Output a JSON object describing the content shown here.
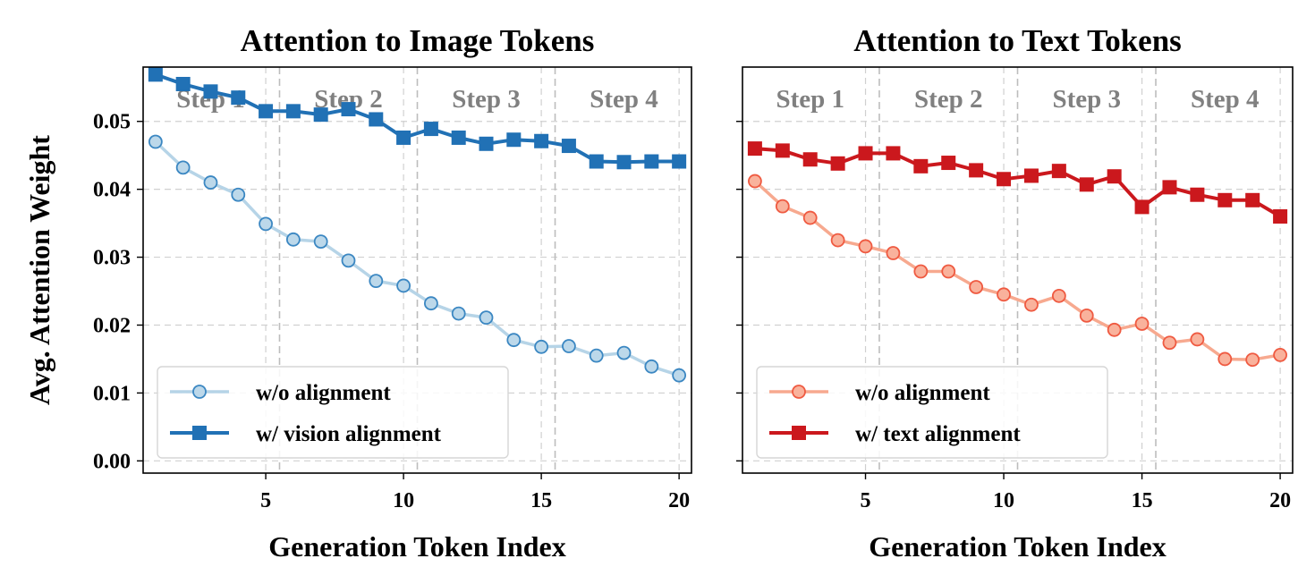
{
  "shared": {
    "ylabel": "Avg. Attention Weight",
    "xlabel": "Generation Token Index",
    "xlim": [
      0.55,
      20.45
    ],
    "ylim": [
      -0.0018,
      0.058
    ],
    "xticks": [
      5,
      10,
      15,
      20
    ],
    "yticks": [
      0.0,
      0.01,
      0.02,
      0.03,
      0.04,
      0.05
    ],
    "step_labels": [
      "Step 1",
      "Step 2",
      "Step 3",
      "Step 4"
    ],
    "step_centers": [
      3.0,
      8.0,
      13.0,
      18.0
    ],
    "step_boundaries": [
      5.5,
      10.5,
      15.5
    ],
    "grid": true,
    "legend_position": "lower-left"
  },
  "chart_data": [
    {
      "type": "line",
      "title": "Attention to Image Tokens",
      "x": [
        1,
        2,
        3,
        4,
        5,
        6,
        7,
        8,
        9,
        10,
        11,
        12,
        13,
        14,
        15,
        16,
        17,
        18,
        19,
        20
      ],
      "series": [
        {
          "name": "w/o alignment",
          "marker": "circle",
          "color": "#3b87c2",
          "line_color": "#b6d4e7",
          "fill_color": "#bcd8ea",
          "values": [
            0.047,
            0.0432,
            0.041,
            0.0392,
            0.0349,
            0.0326,
            0.0323,
            0.0295,
            0.0265,
            0.0258,
            0.0232,
            0.0217,
            0.0211,
            0.0178,
            0.0168,
            0.0169,
            0.0155,
            0.0159,
            0.0139,
            0.0126
          ]
        },
        {
          "name": "w/ vision alignment",
          "marker": "square",
          "color": "#2171b5",
          "line_color": "#2171b5",
          "fill_color": "#2171b5",
          "values": [
            0.0569,
            0.0555,
            0.0544,
            0.0535,
            0.0515,
            0.0515,
            0.051,
            0.0518,
            0.0503,
            0.0476,
            0.0489,
            0.0476,
            0.0467,
            0.0473,
            0.0471,
            0.0464,
            0.0441,
            0.044,
            0.0441,
            0.0441
          ]
        }
      ]
    },
    {
      "type": "line",
      "title": "Attention to Text Tokens",
      "x": [
        1,
        2,
        3,
        4,
        5,
        6,
        7,
        8,
        9,
        10,
        11,
        12,
        13,
        14,
        15,
        16,
        17,
        18,
        19,
        20
      ],
      "series": [
        {
          "name": "w/o alignment",
          "marker": "circle",
          "color": "#ef5a41",
          "line_color": "#f7a98f",
          "fill_color": "#f9b29c",
          "values": [
            0.0412,
            0.0375,
            0.0358,
            0.0325,
            0.0316,
            0.0306,
            0.0279,
            0.0279,
            0.0256,
            0.0245,
            0.023,
            0.0243,
            0.0214,
            0.0193,
            0.0202,
            0.0174,
            0.0179,
            0.015,
            0.0149,
            0.0156
          ]
        },
        {
          "name": "w/ text alignment",
          "marker": "square",
          "color": "#cb181d",
          "line_color": "#cb181d",
          "fill_color": "#cb181d",
          "values": [
            0.046,
            0.0457,
            0.0444,
            0.0438,
            0.0453,
            0.0453,
            0.0434,
            0.0439,
            0.0428,
            0.0415,
            0.042,
            0.0427,
            0.0407,
            0.0419,
            0.0374,
            0.0403,
            0.0392,
            0.0384,
            0.0384,
            0.036
          ]
        }
      ]
    }
  ]
}
